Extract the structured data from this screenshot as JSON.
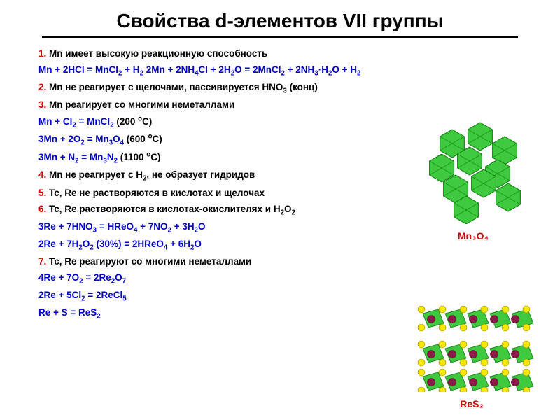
{
  "title": "Свойства d-элементов VII группы",
  "lines": [
    {
      "num": "1.",
      "txt": " Mn имеет высокую реакционную способность"
    },
    {
      "eq": "Mn + 2HCl = MnCl₂ + H₂    2Mn + 2NH₄Cl + 2H₂O = 2MnCl₂ + 2NH₃·H₂O + H₂"
    },
    {
      "num": "2.",
      "txt": " Mn не реагирует с щелочами, пассивируется HNO₃ (конц)"
    },
    {
      "num": "3.",
      "txt": " Mn реагирует со многими неметаллами"
    },
    {
      "eq": "Mn + Cl₂ = MnCl₂",
      "cond": "              (200 ᵒC)"
    },
    {
      "eq": "3Mn + 2O₂ = Mn₃O₄",
      "cond": "          (600 ᵒC)"
    },
    {
      "eq": "3Mn + N₂ = Mn₃N₂",
      "cond": "            (1100 ᵒC)"
    },
    {
      "num": "4.",
      "txt": " Mn не реагирует с H₂, не образует гидридов"
    },
    {
      "num": "5.",
      "txt": " Tc, Re не растворяются в кислотах и щелочах"
    },
    {
      "num": "6.",
      "txt": " Tc, Re растворяются в кислотах-окислителях и H₂O₂"
    },
    {
      "eq": "3Re + 7HNO₃ = HReO₄ + 7NO₂ + 3H₂O"
    },
    {
      "eq": "2Re + 7H₂O₂ (30%) = 2HReO₄ + 6H₂O"
    },
    {
      "num": "7.",
      "txt": " Tc, Re реагируют со многими неметаллами"
    },
    {
      "eq": "4Re + 7O₂ = 2Re₂O₇"
    },
    {
      "eq": "2Re + 5Cl₂ = 2ReCl₅"
    },
    {
      "eq": "Re + S = ReS₂"
    }
  ],
  "fig1": {
    "caption": "Mn₃O₄"
  },
  "fig2": {
    "caption": "ReS₂"
  },
  "colors": {
    "num": "#d00000",
    "txt": "#000000",
    "eq": "#0000cc",
    "caption": "#d00000",
    "green_oct": "#3ec93e",
    "green_edge": "#0a7a0a",
    "yellow": "#f3e600",
    "maroon": "#8e1a4a"
  }
}
